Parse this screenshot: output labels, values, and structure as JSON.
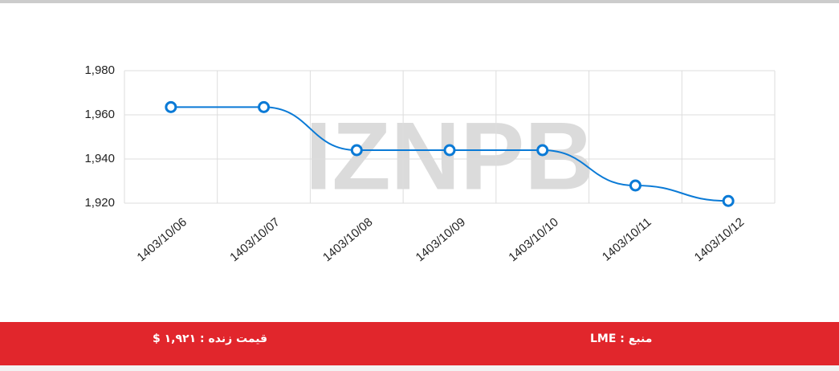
{
  "chart_data": {
    "type": "line",
    "categories": [
      "1403/10/06",
      "1403/10/07",
      "1403/10/08",
      "1403/10/09",
      "1403/10/10",
      "1403/10/11",
      "1403/10/12"
    ],
    "series": [
      {
        "color": "#0a7ad6",
        "values": [
          1963.5,
          1963.5,
          1944,
          1944,
          1944,
          1928,
          1921
        ]
      }
    ],
    "ylim": [
      1920,
      1980
    ],
    "yticks": [
      {
        "value": 1920,
        "label": "1,920"
      },
      {
        "value": 1940,
        "label": "1,940"
      },
      {
        "value": 1960,
        "label": "1,960"
      },
      {
        "value": 1980,
        "label": "1,980"
      }
    ],
    "grid": true,
    "watermark": "IZNPB"
  },
  "footer": {
    "live_price": "قیمت زنده : ۱,۹۲۱ $",
    "source": "منبع : LME",
    "color": "#e1262c"
  }
}
